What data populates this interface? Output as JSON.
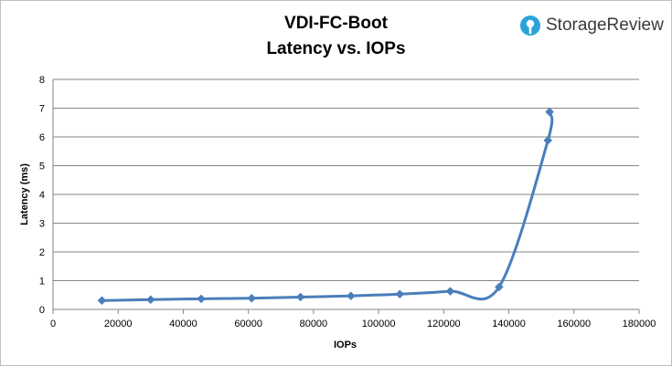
{
  "chart_data": {
    "type": "line",
    "title_line1": "VDI-FC-Boot",
    "title_line2": "Latency vs. IOPs",
    "xlabel": "IOPs",
    "ylabel": "Latency (ms)",
    "xlim": [
      0,
      180000
    ],
    "ylim": [
      0,
      8
    ],
    "x_ticks": [
      "0",
      "20000",
      "40000",
      "60000",
      "80000",
      "100000",
      "120000",
      "140000",
      "160000",
      "180000"
    ],
    "y_ticks": [
      "0",
      "1",
      "2",
      "3",
      "4",
      "5",
      "6",
      "7",
      "8"
    ],
    "grid": true,
    "series": [
      {
        "color": "#4a7ebb",
        "x": [
          15000,
          30000,
          45500,
          61000,
          76000,
          91500,
          106500,
          122000,
          137000,
          152000,
          152500
        ],
        "y": [
          0.31,
          0.34,
          0.37,
          0.39,
          0.43,
          0.47,
          0.53,
          0.63,
          0.78,
          5.88,
          6.87
        ]
      }
    ]
  },
  "brand": {
    "name": "StorageReview",
    "icon": "storagereview-logo-icon",
    "color": "#2aa3d8"
  }
}
